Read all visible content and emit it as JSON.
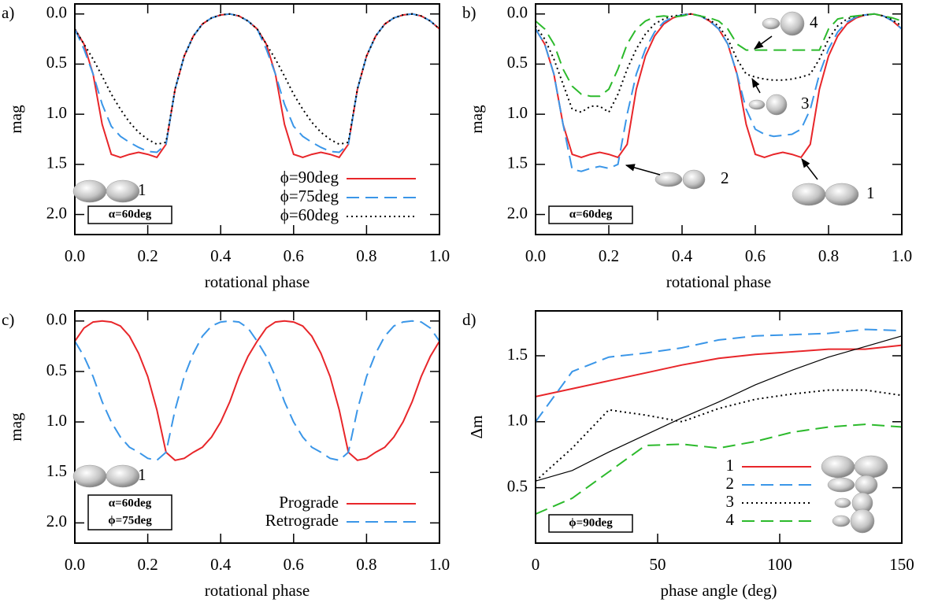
{
  "chart_data": [
    {
      "type": "line",
      "panel_label": "a)",
      "xlabel": "rotational phase",
      "ylabel": "mag",
      "xlim": [
        0,
        1
      ],
      "ylim": [
        -0.1,
        2.2
      ],
      "y_inverted": true,
      "legend": "lower right",
      "xticks": [
        {
          "value": 0,
          "label": "0.0"
        },
        0.2,
        0.4,
        0.6,
        0.8,
        {
          "value": 1,
          "label": "1.0"
        }
      ],
      "yticks": [
        {
          "value": 0,
          "label": "0.0"
        },
        0.5,
        {
          "value": 1,
          "label": "1.0"
        },
        1.5,
        {
          "value": 2,
          "label": "2.0"
        }
      ],
      "shape_label": "1",
      "box_text": [
        "α=60deg"
      ],
      "x": [
        0,
        0.025,
        0.05,
        0.075,
        0.1,
        0.125,
        0.15,
        0.175,
        0.2,
        0.225,
        0.25,
        0.275,
        0.3,
        0.325,
        0.35,
        0.375,
        0.4,
        0.425,
        0.45,
        0.475,
        0.5,
        0.525,
        0.55,
        0.575,
        0.6,
        0.625,
        0.65,
        0.675,
        0.7,
        0.725,
        0.75,
        0.775,
        0.8,
        0.825,
        0.85,
        0.875,
        0.9,
        0.925,
        0.95,
        0.975,
        1
      ],
      "series": [
        {
          "name": "ϕ=90deg",
          "color": "#e8262a",
          "dash": "solid",
          "values": [
            0.15,
            0.3,
            0.6,
            1.1,
            1.4,
            1.43,
            1.4,
            1.38,
            1.4,
            1.43,
            1.3,
            0.75,
            0.42,
            0.22,
            0.1,
            0.04,
            0.01,
            0.0,
            0.02,
            0.07,
            0.15,
            0.3,
            0.6,
            1.1,
            1.4,
            1.43,
            1.4,
            1.38,
            1.4,
            1.43,
            1.3,
            0.75,
            0.42,
            0.22,
            0.1,
            0.04,
            0.01,
            0.0,
            0.02,
            0.07,
            0.15
          ]
        },
        {
          "name": "ϕ=75deg",
          "color": "#3a96e8",
          "dash": "dashed",
          "values": [
            0.15,
            0.35,
            0.6,
            0.9,
            1.12,
            1.22,
            1.28,
            1.33,
            1.37,
            1.38,
            1.3,
            0.75,
            0.42,
            0.22,
            0.1,
            0.04,
            0.01,
            0.0,
            0.02,
            0.07,
            0.15,
            0.35,
            0.6,
            0.9,
            1.12,
            1.22,
            1.28,
            1.33,
            1.37,
            1.38,
            1.3,
            0.75,
            0.42,
            0.22,
            0.1,
            0.04,
            0.01,
            0.0,
            0.02,
            0.07,
            0.15
          ]
        },
        {
          "name": "ϕ=60deg",
          "color": "#000000",
          "dash": "dotted",
          "values": [
            0.15,
            0.3,
            0.45,
            0.62,
            0.8,
            0.95,
            1.08,
            1.18,
            1.25,
            1.3,
            1.28,
            0.75,
            0.42,
            0.22,
            0.1,
            0.04,
            0.01,
            0.0,
            0.02,
            0.07,
            0.15,
            0.3,
            0.45,
            0.62,
            0.8,
            0.95,
            1.08,
            1.18,
            1.25,
            1.3,
            1.28,
            0.75,
            0.42,
            0.22,
            0.1,
            0.04,
            0.01,
            0.0,
            0.02,
            0.07,
            0.15
          ]
        }
      ]
    },
    {
      "type": "line",
      "panel_label": "b)",
      "xlabel": "rotational phase",
      "ylabel": "mag",
      "xlim": [
        0,
        1
      ],
      "ylim": [
        -0.1,
        2.2
      ],
      "y_inverted": true,
      "xticks": [
        {
          "value": 0,
          "label": "0.0"
        },
        0.2,
        0.4,
        0.6,
        0.8,
        {
          "value": 1,
          "label": "1.0"
        }
      ],
      "yticks": [
        {
          "value": 0,
          "label": "0.0"
        },
        0.5,
        {
          "value": 1,
          "label": "1.0"
        },
        1.5,
        {
          "value": 2,
          "label": "2.0"
        }
      ],
      "box_text": [
        "α=60deg"
      ],
      "x": [
        0,
        0.025,
        0.05,
        0.075,
        0.1,
        0.125,
        0.15,
        0.175,
        0.2,
        0.225,
        0.25,
        0.275,
        0.3,
        0.325,
        0.35,
        0.375,
        0.4,
        0.425,
        0.45,
        0.475,
        0.5,
        0.525,
        0.55,
        0.575,
        0.6,
        0.625,
        0.65,
        0.675,
        0.7,
        0.725,
        0.75,
        0.775,
        0.8,
        0.825,
        0.85,
        0.875,
        0.9,
        0.925,
        0.95,
        0.975,
        1
      ],
      "series": [
        {
          "name": "1",
          "color": "#e8262a",
          "dash": "solid",
          "values": [
            0.15,
            0.3,
            0.6,
            1.1,
            1.4,
            1.43,
            1.4,
            1.38,
            1.4,
            1.43,
            1.3,
            0.75,
            0.42,
            0.22,
            0.1,
            0.04,
            0.01,
            0.0,
            0.02,
            0.07,
            0.15,
            0.3,
            0.6,
            1.1,
            1.4,
            1.43,
            1.4,
            1.38,
            1.4,
            1.43,
            1.3,
            0.75,
            0.42,
            0.22,
            0.1,
            0.04,
            0.01,
            0.0,
            0.02,
            0.07,
            0.15
          ]
        },
        {
          "name": "2",
          "color": "#3a96e8",
          "dash": "dashed",
          "values": [
            0.15,
            0.3,
            0.6,
            1.1,
            1.55,
            1.57,
            1.54,
            1.52,
            1.54,
            1.5,
            1.0,
            0.6,
            0.35,
            0.18,
            0.08,
            0.03,
            0.01,
            0.0,
            0.02,
            0.07,
            0.15,
            0.3,
            0.6,
            0.95,
            1.15,
            1.2,
            1.22,
            1.21,
            1.2,
            1.15,
            0.95,
            0.6,
            0.35,
            0.18,
            0.08,
            0.03,
            0.01,
            0.0,
            0.02,
            0.07,
            0.15
          ]
        },
        {
          "name": "3",
          "color": "#000000",
          "dash": "dotted",
          "values": [
            0.12,
            0.25,
            0.45,
            0.7,
            0.95,
            0.98,
            0.92,
            0.92,
            0.98,
            0.8,
            0.55,
            0.35,
            0.2,
            0.1,
            0.05,
            0.02,
            0.01,
            0.0,
            0.02,
            0.06,
            0.12,
            0.25,
            0.45,
            0.6,
            0.63,
            0.65,
            0.66,
            0.66,
            0.65,
            0.63,
            0.6,
            0.45,
            0.25,
            0.12,
            0.05,
            0.02,
            0.01,
            0.0,
            0.02,
            0.06,
            0.12
          ]
        },
        {
          "name": "4",
          "color": "#2cba2c",
          "dash": "dashed",
          "values": [
            0.07,
            0.15,
            0.3,
            0.55,
            0.72,
            0.8,
            0.82,
            0.82,
            0.75,
            0.55,
            0.3,
            0.15,
            0.07,
            0.03,
            0.02,
            0.03,
            0.02,
            0.0,
            0.02,
            0.04,
            0.07,
            0.15,
            0.3,
            0.36,
            0.36,
            0.36,
            0.36,
            0.36,
            0.36,
            0.36,
            0.36,
            0.36,
            0.15,
            0.05,
            0.03,
            0.02,
            0.01,
            0.0,
            0.02,
            0.04,
            0.07
          ]
        }
      ]
    },
    {
      "type": "line",
      "panel_label": "c)",
      "xlabel": "rotational phase",
      "ylabel": "mag",
      "xlim": [
        0,
        1
      ],
      "ylim": [
        -0.1,
        2.2
      ],
      "y_inverted": true,
      "legend": "lower right",
      "xticks": [
        {
          "value": 0,
          "label": "0.0"
        },
        0.2,
        0.4,
        0.6,
        0.8,
        {
          "value": 1,
          "label": "1.0"
        }
      ],
      "yticks": [
        {
          "value": 0,
          "label": "0.0"
        },
        0.5,
        {
          "value": 1,
          "label": "1.0"
        },
        1.5,
        {
          "value": 2,
          "label": "2.0"
        }
      ],
      "shape_label": "1",
      "box_text": [
        "α=60deg",
        "ϕ=75deg"
      ],
      "x": [
        0,
        0.025,
        0.05,
        0.075,
        0.1,
        0.125,
        0.15,
        0.175,
        0.2,
        0.225,
        0.25,
        0.275,
        0.3,
        0.325,
        0.35,
        0.375,
        0.4,
        0.425,
        0.45,
        0.475,
        0.5,
        0.525,
        0.55,
        0.575,
        0.6,
        0.625,
        0.65,
        0.675,
        0.7,
        0.725,
        0.75,
        0.775,
        0.8,
        0.825,
        0.85,
        0.875,
        0.9,
        0.925,
        0.95,
        0.975,
        1
      ],
      "series": [
        {
          "name": "Prograde",
          "color": "#e8262a",
          "dash": "solid",
          "values": [
            0.2,
            0.07,
            0.01,
            0.0,
            0.01,
            0.05,
            0.15,
            0.32,
            0.55,
            0.88,
            1.3,
            1.38,
            1.36,
            1.3,
            1.25,
            1.15,
            1.0,
            0.8,
            0.55,
            0.35,
            0.2,
            0.07,
            0.01,
            0.0,
            0.01,
            0.05,
            0.15,
            0.32,
            0.55,
            0.88,
            1.3,
            1.38,
            1.36,
            1.3,
            1.25,
            1.15,
            1.0,
            0.8,
            0.55,
            0.35,
            0.2
          ]
        },
        {
          "name": "Retrograde",
          "color": "#3a96e8",
          "dash": "dashed",
          "values": [
            0.2,
            0.35,
            0.55,
            0.8,
            1.0,
            1.15,
            1.25,
            1.3,
            1.36,
            1.38,
            1.3,
            0.88,
            0.55,
            0.32,
            0.15,
            0.05,
            0.01,
            0.0,
            0.01,
            0.07,
            0.2,
            0.35,
            0.55,
            0.8,
            1.0,
            1.15,
            1.25,
            1.3,
            1.36,
            1.38,
            1.3,
            0.88,
            0.55,
            0.32,
            0.15,
            0.05,
            0.01,
            0.0,
            0.01,
            0.07,
            0.2
          ]
        }
      ]
    },
    {
      "type": "line",
      "panel_label": "d)",
      "xlabel": "phase angle (deg)",
      "ylabel": "Δm",
      "xlim": [
        0,
        150
      ],
      "ylim": [
        0.08,
        1.84
      ],
      "legend": "lower right",
      "xticks": [
        0,
        50,
        100,
        150
      ],
      "yticks": [
        0.5,
        {
          "value": 1,
          "label": "1.0"
        },
        1.5
      ],
      "box_text": [
        "ϕ=90deg"
      ],
      "x": [
        0,
        15,
        30,
        45,
        60,
        75,
        90,
        105,
        120,
        135,
        150
      ],
      "series": [
        {
          "name": "1",
          "color": "#e8262a",
          "dash": "solid",
          "values": [
            1.19,
            1.25,
            1.31,
            1.37,
            1.43,
            1.48,
            1.51,
            1.53,
            1.55,
            1.55,
            1.58
          ]
        },
        {
          "name": "2",
          "color": "#3a96e8",
          "dash": "dashed",
          "values": [
            1.0,
            1.38,
            1.49,
            1.52,
            1.56,
            1.62,
            1.65,
            1.66,
            1.67,
            1.7,
            1.69
          ]
        },
        {
          "name": "3",
          "color": "#000000",
          "dash": "dotted",
          "values": [
            0.55,
            0.8,
            1.09,
            1.05,
            1.0,
            1.1,
            1.17,
            1.21,
            1.24,
            1.24,
            1.2
          ]
        },
        {
          "name": "4",
          "color": "#2cba2c",
          "dash": "dashed",
          "values": [
            0.3,
            0.42,
            0.62,
            0.82,
            0.83,
            0.8,
            0.85,
            0.92,
            0.96,
            0.98,
            0.96
          ]
        },
        {
          "color": "#000000",
          "dash": "solid",
          "values": [
            0.55,
            0.63,
            0.77,
            0.9,
            1.03,
            1.15,
            1.28,
            1.39,
            1.49,
            1.57,
            1.65
          ]
        }
      ]
    }
  ]
}
